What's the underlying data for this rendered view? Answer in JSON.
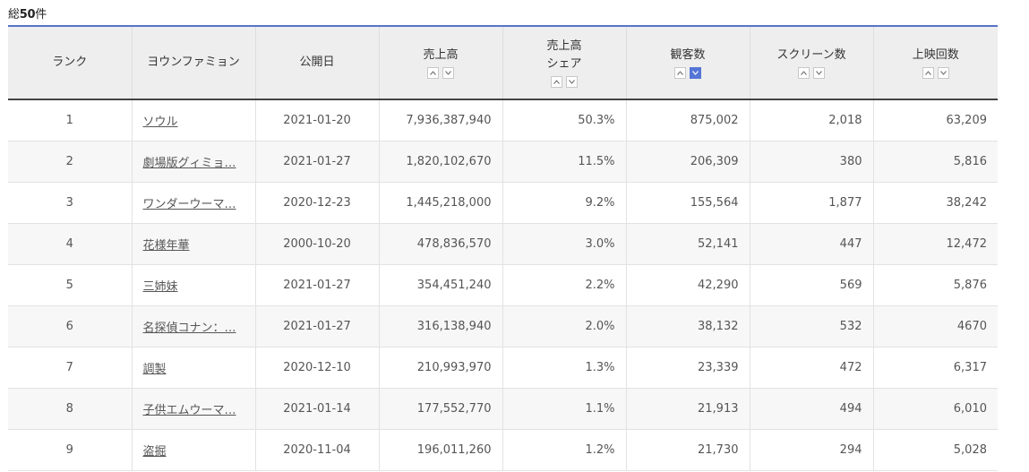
{
  "summary": {
    "prefix": "総",
    "count": "50",
    "suffix": "件"
  },
  "colors": {
    "header_bg": "#eeeeee",
    "header_top_border": "#5a73c7",
    "active_sort": "#5576d6",
    "row_alt": "#f7f7f7"
  },
  "columns": {
    "rank": "ランク",
    "title": "ヨウンファミョン",
    "date": "公開日",
    "sales": "売上高",
    "share_line1": "売上高",
    "share_line2": "シェア",
    "audience": "観客数",
    "screens": "スクリーン数",
    "showings": "上映回数"
  },
  "sort_icons": {
    "up": "chevron-up-icon",
    "down": "chevron-down-icon",
    "active_column": "audience",
    "active_direction": "down"
  },
  "rows": [
    {
      "rank": "1",
      "title": "ソウル",
      "date": "2021-01-20",
      "sales": "7,936,387,940",
      "share": "50.3%",
      "audience": "875,002",
      "screens": "2,018",
      "showings": "63,209"
    },
    {
      "rank": "2",
      "title": "劇場版グィミョ…",
      "date": "2021-01-27",
      "sales": "1,820,102,670",
      "share": "11.5%",
      "audience": "206,309",
      "screens": "380",
      "showings": "5,816"
    },
    {
      "rank": "3",
      "title": "ワンダーウーマ…",
      "date": "2020-12-23",
      "sales": "1,445,218,000",
      "share": "9.2%",
      "audience": "155,564",
      "screens": "1,877",
      "showings": "38,242"
    },
    {
      "rank": "4",
      "title": "花様年華",
      "date": "2000-10-20",
      "sales": "478,836,570",
      "share": "3.0%",
      "audience": "52,141",
      "screens": "447",
      "showings": "12,472"
    },
    {
      "rank": "5",
      "title": "三姉妹",
      "date": "2021-01-27",
      "sales": "354,451,240",
      "share": "2.2%",
      "audience": "42,290",
      "screens": "569",
      "showings": "5,876"
    },
    {
      "rank": "6",
      "title": "名探偵コナン：…",
      "date": "2021-01-27",
      "sales": "316,138,940",
      "share": "2.0%",
      "audience": "38,132",
      "screens": "532",
      "showings": "4670"
    },
    {
      "rank": "7",
      "title": "調製",
      "date": "2020-12-10",
      "sales": "210,993,970",
      "share": "1.3%",
      "audience": "23,339",
      "screens": "472",
      "showings": "6,317"
    },
    {
      "rank": "8",
      "title": "子供エムウーマ…",
      "date": "2021-01-14",
      "sales": "177,552,770",
      "share": "1.1%",
      "audience": "21,913",
      "screens": "494",
      "showings": "6,010"
    },
    {
      "rank": "9",
      "title": "盗掘",
      "date": "2020-11-04",
      "sales": "196,011,260",
      "share": "1.2%",
      "audience": "21,730",
      "screens": "294",
      "showings": "5,028"
    }
  ]
}
